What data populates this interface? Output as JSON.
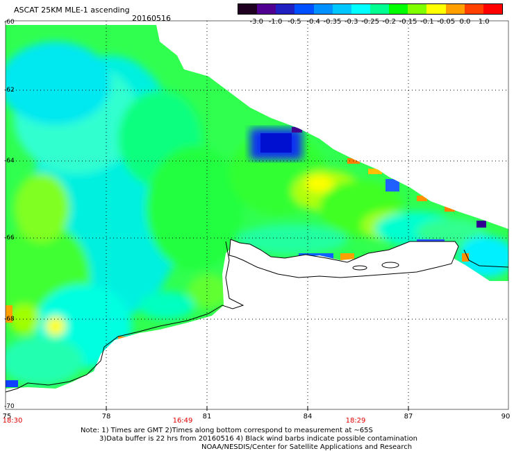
{
  "header": {
    "title": "ASCAT 25KM MLE-1 ascending",
    "date": "20160516"
  },
  "colorbar": {
    "labels": [
      "-3.0",
      "-1.0",
      "-0.5",
      "-0.4",
      "-0.35",
      "-0.3",
      "-0.25",
      "-0.2",
      "-0.15",
      "-0.1",
      "-0.05",
      "0.0",
      "1.0"
    ],
    "colors": [
      "#200020",
      "#500090",
      "#2020c0",
      "#0050ff",
      "#0090ff",
      "#00c8ff",
      "#00ffff",
      "#00ff90",
      "#00ff00",
      "#80ff00",
      "#ffff00",
      "#ffa000",
      "#ff4000",
      "#ff0000"
    ]
  },
  "latitude_labels": [
    "-60",
    "-62",
    "-64",
    "-66",
    "-68",
    "-70"
  ],
  "longitude_labels": [
    "75",
    "78",
    "81",
    "84",
    "87",
    "90"
  ],
  "time_labels": [
    "18:30",
    "16:49",
    "18:29"
  ],
  "notes": {
    "line1": "Note: 1) Times are GMT 2)Times along bottom correspond to measurement at ~65S",
    "line2": "3)Data buffer is 22 hrs from 20160516 4) Black wind barbs indicate possible contamination",
    "line3": "NOAA/NESDIS/Center for Satellite Applications and Research"
  }
}
